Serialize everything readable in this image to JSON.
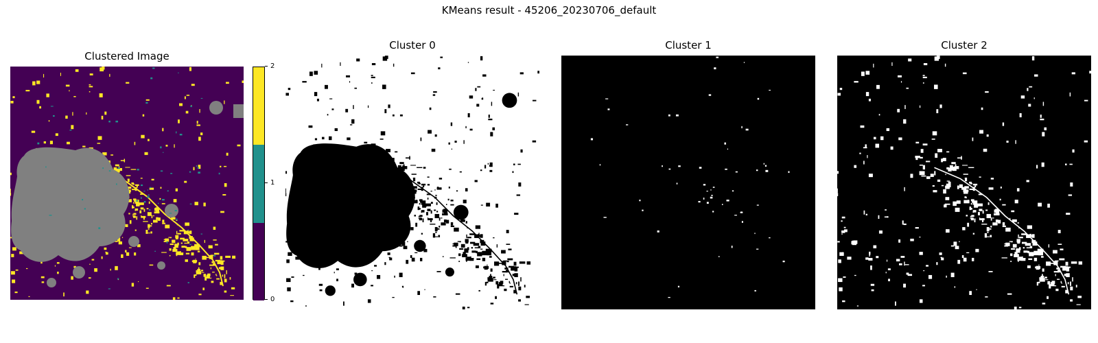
{
  "figure": {
    "suptitle": "KMeans result - 45206_20230706_default"
  },
  "colors": {
    "cluster_0": "#440154",
    "cluster_1": "#21918c",
    "cluster_2": "#fde725",
    "nodata": "#808080",
    "mask_on": "#ffffff",
    "mask_off": "#000000"
  },
  "chart_data": [
    {
      "type": "heatmap",
      "title": "Clustered Image",
      "colormap": "viridis",
      "classes": [
        0,
        1,
        2
      ],
      "colorbar": {
        "ticks": [
          "0",
          "1",
          "2"
        ],
        "range": [
          0,
          2
        ]
      },
      "axes": "off"
    },
    {
      "type": "heatmap",
      "title": "Cluster 0",
      "colormap": "binary (white = member)",
      "axes": "off"
    },
    {
      "type": "heatmap",
      "title": "Cluster 1",
      "colormap": "binary (white = member)",
      "axes": "off"
    },
    {
      "type": "heatmap",
      "title": "Cluster 2",
      "colormap": "binary (white = member)",
      "axes": "off"
    }
  ]
}
